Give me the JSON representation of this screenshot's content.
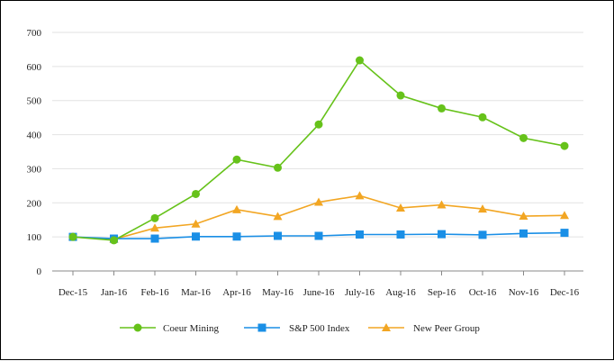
{
  "chart_data": {
    "type": "line",
    "categories": [
      "Dec-15",
      "Jan-16",
      "Feb-16",
      "Mar-16",
      "Apr-16",
      "May-16",
      "June-16",
      "July-16",
      "Aug-16",
      "Sep-16",
      "Oct-16",
      "Nov-16",
      "Dec-16"
    ],
    "ylim": [
      0,
      700
    ],
    "yticks": [
      0,
      100,
      200,
      300,
      400,
      500,
      600,
      700
    ],
    "grid": true,
    "legend_position": "bottom",
    "series": [
      {
        "name": "Coeur Mining",
        "color": "#66c21a",
        "marker": "circle",
        "values": [
          100,
          90,
          155,
          226,
          327,
          303,
          430,
          618,
          515,
          477,
          451,
          390,
          367
        ]
      },
      {
        "name": "S&P 500 Index",
        "color": "#1a8fe6",
        "marker": "square",
        "values": [
          100,
          95,
          95,
          101,
          101,
          103,
          103,
          107,
          107,
          108,
          106,
          110,
          112
        ]
      },
      {
        "name": "New Peer Group",
        "color": "#f2a623",
        "marker": "triangle",
        "values": [
          100,
          93,
          126,
          138,
          180,
          160,
          202,
          221,
          185,
          194,
          182,
          161,
          163
        ]
      }
    ]
  }
}
